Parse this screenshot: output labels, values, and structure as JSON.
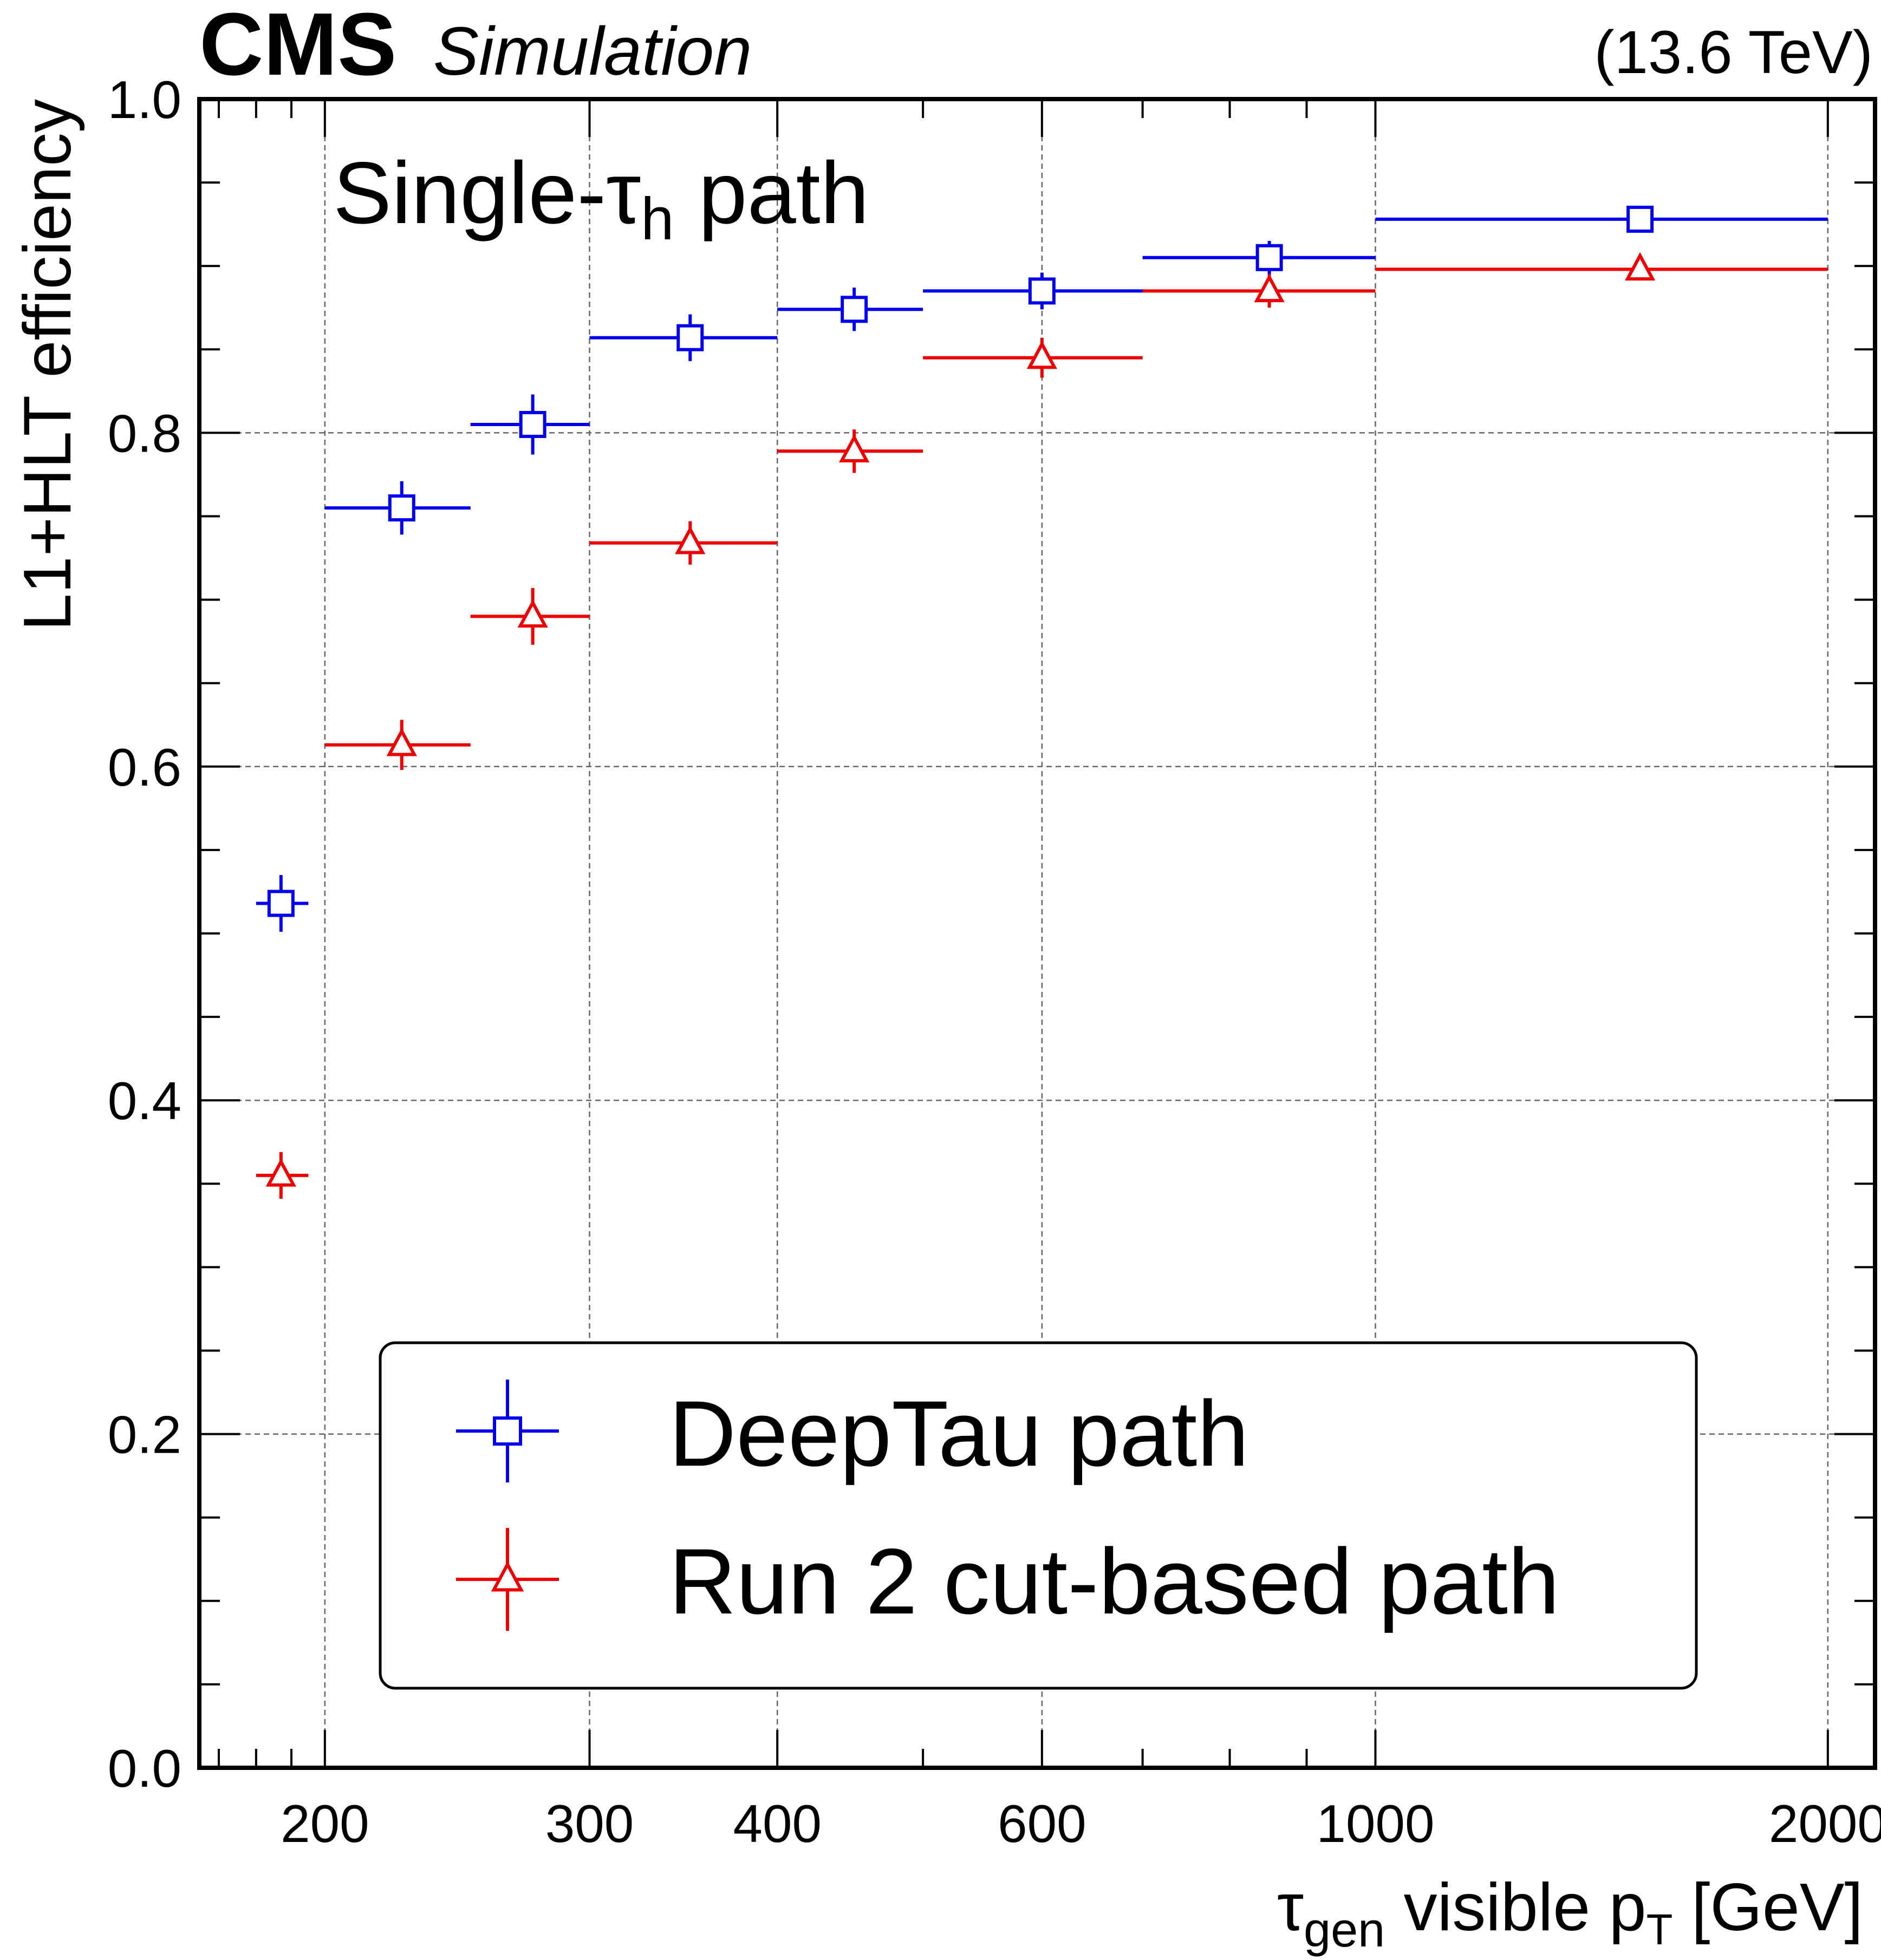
{
  "header": {
    "experiment": "CMS",
    "status": "Simulation",
    "energy": "(13.6 TeV)"
  },
  "annotation": {
    "main": "Single-τ",
    "sub": "h",
    "tail": " path"
  },
  "axes": {
    "x_title": {
      "main1": "τ",
      "sub1": "gen",
      "main2": " visible p",
      "sub2": "T",
      "main3": " [GeV]"
    },
    "y_title": "L1+HLT efficiency"
  },
  "chart_data": {
    "type": "scatter",
    "x_scale": "log",
    "xlim": [
      165,
      2150
    ],
    "ylim": [
      0.0,
      1.0
    ],
    "grid": true,
    "legend_position": "bottom-right",
    "x_ticks": [
      200,
      300,
      400,
      600,
      1000,
      2000
    ],
    "x_tick_labels": [
      "200",
      "300",
      "400",
      "600",
      "1000",
      "2000"
    ],
    "x_minor_ticks": [
      170,
      180,
      190,
      500,
      700,
      800,
      900
    ],
    "y_ticks": [
      0.0,
      0.2,
      0.4,
      0.6,
      0.8,
      1.0
    ],
    "y_tick_labels": [
      "0.0",
      "0.2",
      "0.4",
      "0.6",
      "0.8",
      "1.0"
    ],
    "series": [
      {
        "name": "DeepTau path",
        "color": "#0000ee",
        "marker": "open-square",
        "points": [
          {
            "x": 187,
            "xlo": 180,
            "xhi": 195,
            "y": 0.518,
            "err": 0.017
          },
          {
            "x": 225,
            "xlo": 200,
            "xhi": 250,
            "y": 0.755,
            "err": 0.016
          },
          {
            "x": 275,
            "xlo": 250,
            "xhi": 300,
            "y": 0.805,
            "err": 0.018
          },
          {
            "x": 350,
            "xlo": 300,
            "xhi": 400,
            "y": 0.857,
            "err": 0.014
          },
          {
            "x": 450,
            "xlo": 400,
            "xhi": 500,
            "y": 0.874,
            "err": 0.013
          },
          {
            "x": 600,
            "xlo": 500,
            "xhi": 700,
            "y": 0.885,
            "err": 0.011
          },
          {
            "x": 850,
            "xlo": 700,
            "xhi": 1000,
            "y": 0.905,
            "err": 0.01
          },
          {
            "x": 1500,
            "xlo": 1000,
            "xhi": 2000,
            "y": 0.928,
            "err": 0.006
          }
        ]
      },
      {
        "name": "Run 2 cut-based path",
        "color": "#ee0000",
        "marker": "open-triangle",
        "points": [
          {
            "x": 187,
            "xlo": 180,
            "xhi": 195,
            "y": 0.355,
            "err": 0.014
          },
          {
            "x": 225,
            "xlo": 200,
            "xhi": 250,
            "y": 0.613,
            "err": 0.015
          },
          {
            "x": 275,
            "xlo": 250,
            "xhi": 300,
            "y": 0.69,
            "err": 0.017
          },
          {
            "x": 350,
            "xlo": 300,
            "xhi": 400,
            "y": 0.734,
            "err": 0.013
          },
          {
            "x": 450,
            "xlo": 400,
            "xhi": 500,
            "y": 0.789,
            "err": 0.013
          },
          {
            "x": 600,
            "xlo": 500,
            "xhi": 700,
            "y": 0.845,
            "err": 0.012
          },
          {
            "x": 850,
            "xlo": 700,
            "xhi": 1000,
            "y": 0.885,
            "err": 0.01
          },
          {
            "x": 1500,
            "xlo": 1000,
            "xhi": 2000,
            "y": 0.898,
            "err": 0.006
          }
        ]
      }
    ]
  }
}
